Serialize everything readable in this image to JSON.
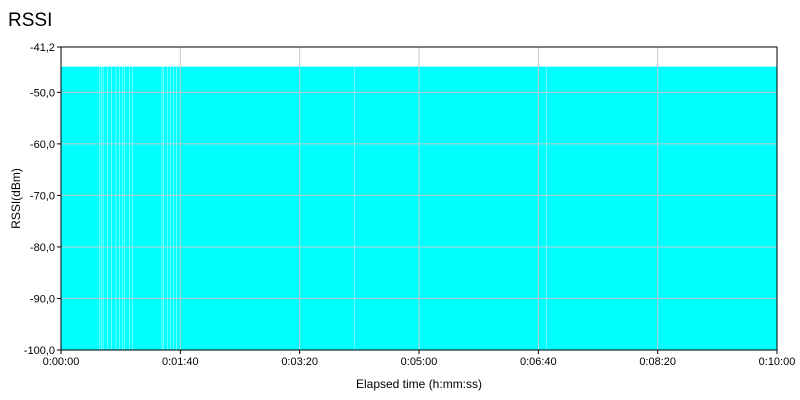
{
  "chart_data": {
    "type": "area",
    "title": "RSSI",
    "xlabel": "Elapsed time (h:mm:ss)",
    "ylabel": "RSSI(dBm)",
    "xlim": [
      0,
      600
    ],
    "ylim": [
      -100,
      -41.2
    ],
    "x_ticks": [
      {
        "value": 0,
        "label": "0:00:00"
      },
      {
        "value": 100,
        "label": "0:01:40"
      },
      {
        "value": 200,
        "label": "0:03:20"
      },
      {
        "value": 300,
        "label": "0:05:00"
      },
      {
        "value": 400,
        "label": "0:06:40"
      },
      {
        "value": 500,
        "label": "0:08:20"
      },
      {
        "value": 600,
        "label": "0:10:00"
      }
    ],
    "y_ticks": [
      {
        "value": -41.2,
        "label": "-41,2"
      },
      {
        "value": -50,
        "label": "-50,0"
      },
      {
        "value": -60,
        "label": "-60,0"
      },
      {
        "value": -70,
        "label": "-70,0"
      },
      {
        "value": -80,
        "label": "-80,0"
      },
      {
        "value": -90,
        "label": "-90,0"
      },
      {
        "value": -100,
        "label": "-100,0"
      }
    ],
    "grid": true,
    "series": [
      {
        "color": "#00ffff",
        "level": -45,
        "gaps_seconds": [
          32.5,
          33.8,
          35.3,
          39.1,
          42.3,
          46.1,
          49.2,
          51.3,
          53.5,
          57.3,
          60.2,
          84.6,
          86.1,
          89.3,
          91.5,
          94.6,
          96.7,
          246.1,
          406.9
        ]
      }
    ]
  }
}
